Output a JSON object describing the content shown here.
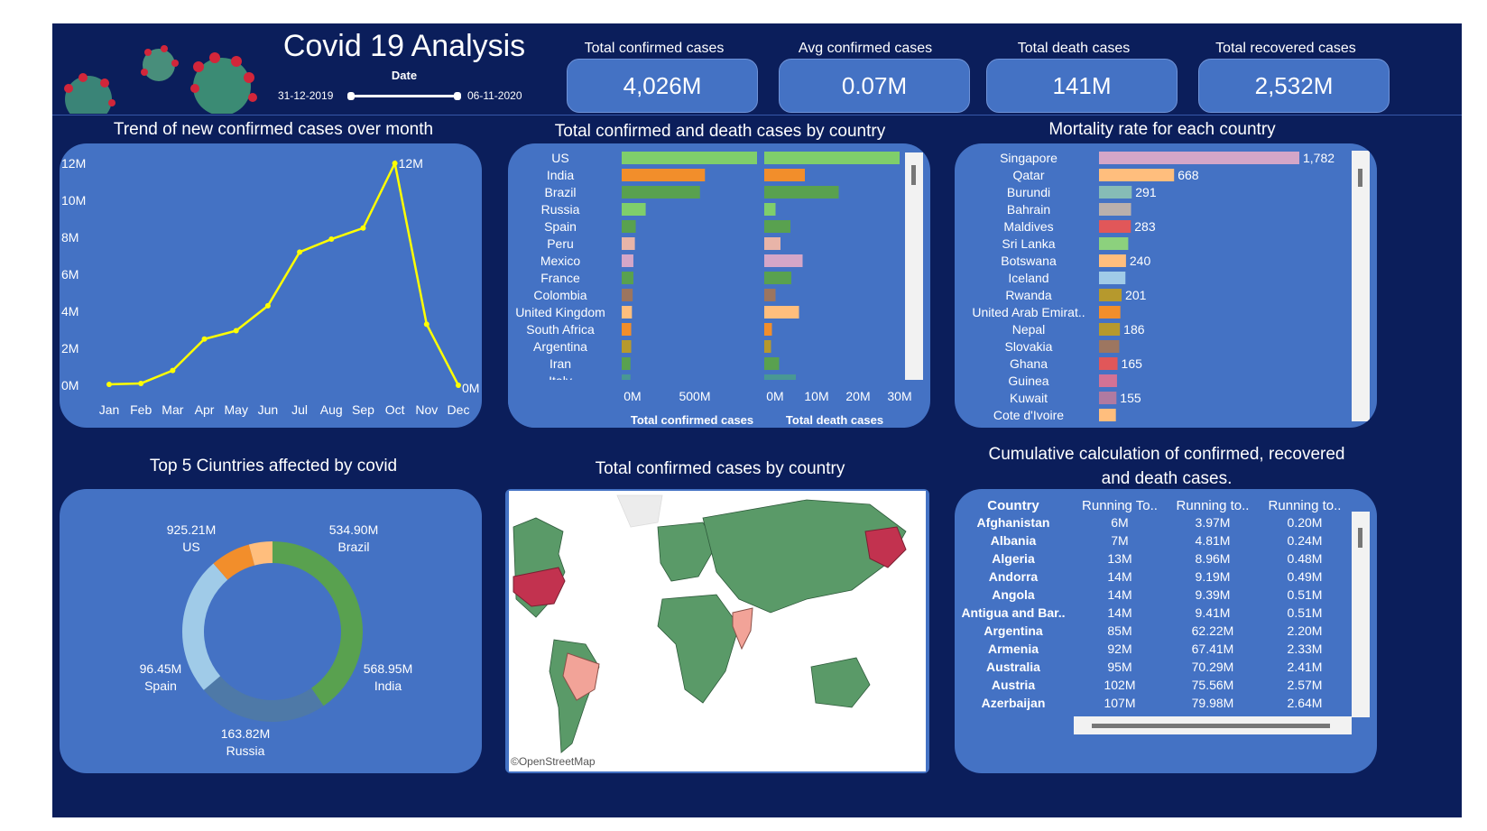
{
  "header": {
    "title": "Covid 19 Analysis",
    "date_label": "Date",
    "date_start": "31-12-2019",
    "date_end": "06-11-2020"
  },
  "kpis": [
    {
      "label": "Total confirmed cases",
      "value": "4,026M"
    },
    {
      "label": "Avg confirmed cases",
      "value": "0.07M"
    },
    {
      "label": "Total death cases",
      "value": "141M"
    },
    {
      "label": "Total recovered cases",
      "value": "2,532M"
    }
  ],
  "panels": {
    "trend_title": "Trend of new confirmed cases over month",
    "country_bars_title": "Total confirmed and death cases by country",
    "mortality_title": "Mortality rate for each country",
    "top5_title": "Top 5 Ciuntries affected by covid",
    "map_title": "Total confirmed cases by country",
    "map_credit": "©OpenStreetMap",
    "cumulative_title_line1": "Cumulative calculation of confirmed, recovered",
    "cumulative_title_line2": "and death cases."
  },
  "chart_data": [
    {
      "type": "line",
      "id": "trend",
      "x": [
        "Jan",
        "Feb",
        "Mar",
        "Apr",
        "May",
        "Jun",
        "Jul",
        "Aug",
        "Sep",
        "Oct",
        "Nov",
        "Dec"
      ],
      "y": [
        0.05,
        0.1,
        0.8,
        2.5,
        2.95,
        4.3,
        7.2,
        7.9,
        8.5,
        12.0,
        3.3,
        0.0
      ],
      "yticks": [
        "0M",
        "2M",
        "4M",
        "6M",
        "8M",
        "10M",
        "12M"
      ],
      "ylim": [
        0,
        12
      ],
      "data_labels": {
        "9": "12M",
        "11": "0M"
      },
      "color": "#ffff00"
    },
    {
      "type": "bar",
      "id": "country_bars",
      "categories": [
        "US",
        "India",
        "Brazil",
        "Russia",
        "Spain",
        "Peru",
        "Mexico",
        "France",
        "Colombia",
        "United Kingdom",
        "South Africa",
        "Argentina",
        "Iran",
        "Italy"
      ],
      "series": [
        {
          "name": "Total confirmed cases",
          "values": [
            925,
            569,
            535,
            164,
            96,
            90,
            80,
            80,
            75,
            70,
            65,
            65,
            60,
            60
          ],
          "xticks": [
            "0M",
            "500M"
          ],
          "xlim": [
            0,
            925
          ]
        },
        {
          "name": "Total death cases",
          "values": [
            30.0,
            9.0,
            16.5,
            2.5,
            5.8,
            3.6,
            8.5,
            6.0,
            2.5,
            7.7,
            1.7,
            1.5,
            3.3,
            7.0
          ],
          "xticks": [
            "0M",
            "10M",
            "20M",
            "30M"
          ],
          "xlim": [
            0,
            30
          ]
        }
      ],
      "colors": [
        "#7fce6b",
        "#f28e2b",
        "#59a14f",
        "#7fce6b",
        "#59a14f",
        "#e8b4a8",
        "#d4a6c8",
        "#59a14f",
        "#9c755f",
        "#ffbe7d",
        "#f28e2b",
        "#b6992d",
        "#59a14f",
        "#499894"
      ]
    },
    {
      "type": "bar",
      "id": "mortality",
      "categories": [
        "Singapore",
        "Qatar",
        "Burundi",
        "Bahrain",
        "Maldives",
        "Sri Lanka",
        "Botswana",
        "Iceland",
        "Rwanda",
        "United Arab Emirat..",
        "Nepal",
        "Slovakia",
        "Ghana",
        "Guinea",
        "Kuwait",
        "Cote d'Ivoire"
      ],
      "values": [
        1782,
        668,
        291,
        285,
        283,
        260,
        240,
        235,
        201,
        190,
        186,
        180,
        165,
        160,
        155,
        150
      ],
      "data_labels": [
        "1,782",
        "668",
        "291",
        "",
        "283",
        "",
        "240",
        "",
        "201",
        "",
        "186",
        "",
        "165",
        "",
        "155",
        ""
      ],
      "colors": [
        "#d4a6c8",
        "#ffbe7d",
        "#86bcb6",
        "#bab0ac",
        "#e15759",
        "#8cd17d",
        "#ffbe7d",
        "#a0cbe8",
        "#b6992d",
        "#f28e2b",
        "#b6992d",
        "#9d7660",
        "#e15759",
        "#d37295",
        "#b07aa1",
        "#ffbe7d"
      ]
    },
    {
      "type": "pie",
      "id": "top5",
      "labels": [
        "US",
        "Brazil",
        "India",
        "Russia",
        "Spain"
      ],
      "values": [
        925.21,
        534.9,
        568.95,
        163.82,
        96.45
      ],
      "value_labels": [
        "925.21M",
        "534.90M",
        "568.95M",
        "163.82M",
        "96.45M"
      ],
      "colors": [
        "#59a14f",
        "#4e79a7",
        "#a0cbe8",
        "#f28e2b",
        "#ffbe7d"
      ]
    },
    {
      "type": "table",
      "id": "cumulative",
      "columns": [
        "Country",
        "Running To..",
        "Running to..",
        "Running to.."
      ],
      "rows": [
        [
          "Afghanistan",
          "6M",
          "3.97M",
          "0.20M"
        ],
        [
          "Albania",
          "7M",
          "4.81M",
          "0.24M"
        ],
        [
          "Algeria",
          "13M",
          "8.96M",
          "0.48M"
        ],
        [
          "Andorra",
          "14M",
          "9.19M",
          "0.49M"
        ],
        [
          "Angola",
          "14M",
          "9.39M",
          "0.51M"
        ],
        [
          "Antigua and Bar..",
          "14M",
          "9.41M",
          "0.51M"
        ],
        [
          "Argentina",
          "85M",
          "62.22M",
          "2.20M"
        ],
        [
          "Armenia",
          "92M",
          "67.41M",
          "2.33M"
        ],
        [
          "Australia",
          "95M",
          "70.29M",
          "2.41M"
        ],
        [
          "Austria",
          "102M",
          "75.56M",
          "2.57M"
        ],
        [
          "Azerbaijan",
          "107M",
          "79.98M",
          "2.64M"
        ]
      ]
    }
  ]
}
